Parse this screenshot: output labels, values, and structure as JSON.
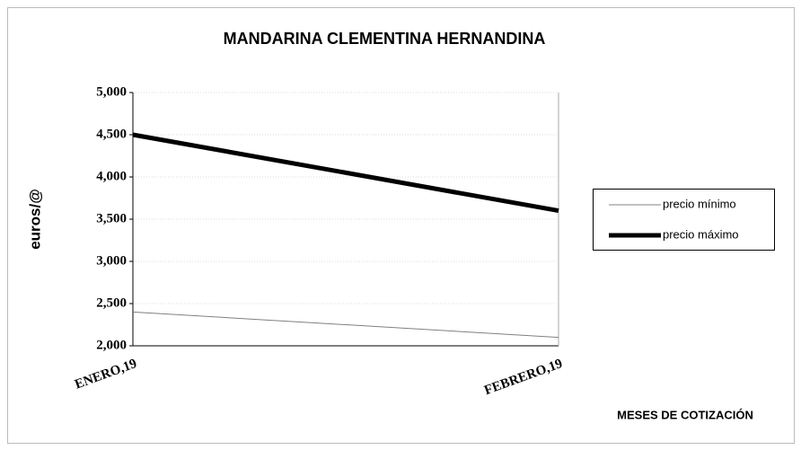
{
  "chart_data": {
    "type": "line",
    "title": "MANDARINA CLEMENTINA HERNANDINA",
    "y_label": "euros/@",
    "x_label": "MESES DE COTIZACIÓN",
    "categories": [
      "ENERO,19",
      "FEBRERO,19"
    ],
    "series": [
      {
        "name": "precio mínimo",
        "color": "#808080",
        "width": 1,
        "values": [
          2.4,
          2.1
        ]
      },
      {
        "name": "precio máximo",
        "color": "#000000",
        "width": 5,
        "values": [
          4.5,
          3.6
        ]
      }
    ],
    "ylim": [
      2,
      5
    ],
    "yticks": [
      {
        "value": 2,
        "label": "2,000"
      },
      {
        "value": 2.5,
        "label": "2,500"
      },
      {
        "value": 3,
        "label": "3,000"
      },
      {
        "value": 3.5,
        "label": "3,500"
      },
      {
        "value": 4,
        "label": "4,000"
      },
      {
        "value": 4.5,
        "label": "4,500"
      },
      {
        "value": 5,
        "label": "5,000"
      }
    ],
    "grid": true,
    "legend": "right"
  }
}
